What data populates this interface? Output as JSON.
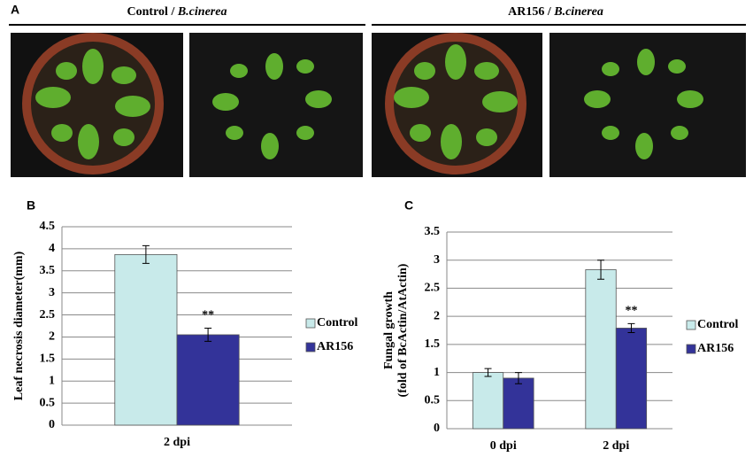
{
  "panel_a": {
    "label": "A",
    "groups": [
      {
        "plain": "Control / ",
        "italic": "B.cinerea"
      },
      {
        "plain": "AR156 / ",
        "italic": "B.cinerea"
      }
    ]
  },
  "chart_data": [
    {
      "type": "bar",
      "panel_label": "B",
      "y_label": [
        "Leaf necrosis diameter(mm)"
      ],
      "categories": [
        "2 dpi"
      ],
      "series": [
        {
          "name": "Control",
          "color": "#c8eaea",
          "values": [
            3.87
          ],
          "errors": [
            0.2
          ]
        },
        {
          "name": "AR156",
          "color": "#333399",
          "values": [
            2.05
          ],
          "errors": [
            0.15
          ]
        }
      ],
      "annotations": [
        {
          "text": "**",
          "series": 1,
          "index": 0
        }
      ],
      "ylim": [
        0,
        4.5
      ],
      "yticks": [
        0,
        0.5,
        1,
        1.5,
        2,
        2.5,
        3,
        3.5,
        4,
        4.5
      ],
      "grid": true,
      "legend": "right"
    },
    {
      "type": "bar",
      "panel_label": "C",
      "y_label": [
        "Fungal growth",
        "(fold of BcActin/AtActin)"
      ],
      "categories": [
        "0 dpi",
        "2 dpi"
      ],
      "series": [
        {
          "name": "Control",
          "color": "#c8eaea",
          "values": [
            1.0,
            2.83
          ],
          "errors": [
            0.07,
            0.17
          ]
        },
        {
          "name": "AR156",
          "color": "#333399",
          "values": [
            0.9,
            1.79
          ],
          "errors": [
            0.1,
            0.08
          ]
        }
      ],
      "annotations": [
        {
          "text": "**",
          "series": 1,
          "index": 1
        }
      ],
      "ylim": [
        0,
        3.5
      ],
      "yticks": [
        0,
        0.5,
        1,
        1.5,
        2,
        2.5,
        3,
        3.5
      ],
      "grid": true,
      "legend": "right"
    }
  ]
}
